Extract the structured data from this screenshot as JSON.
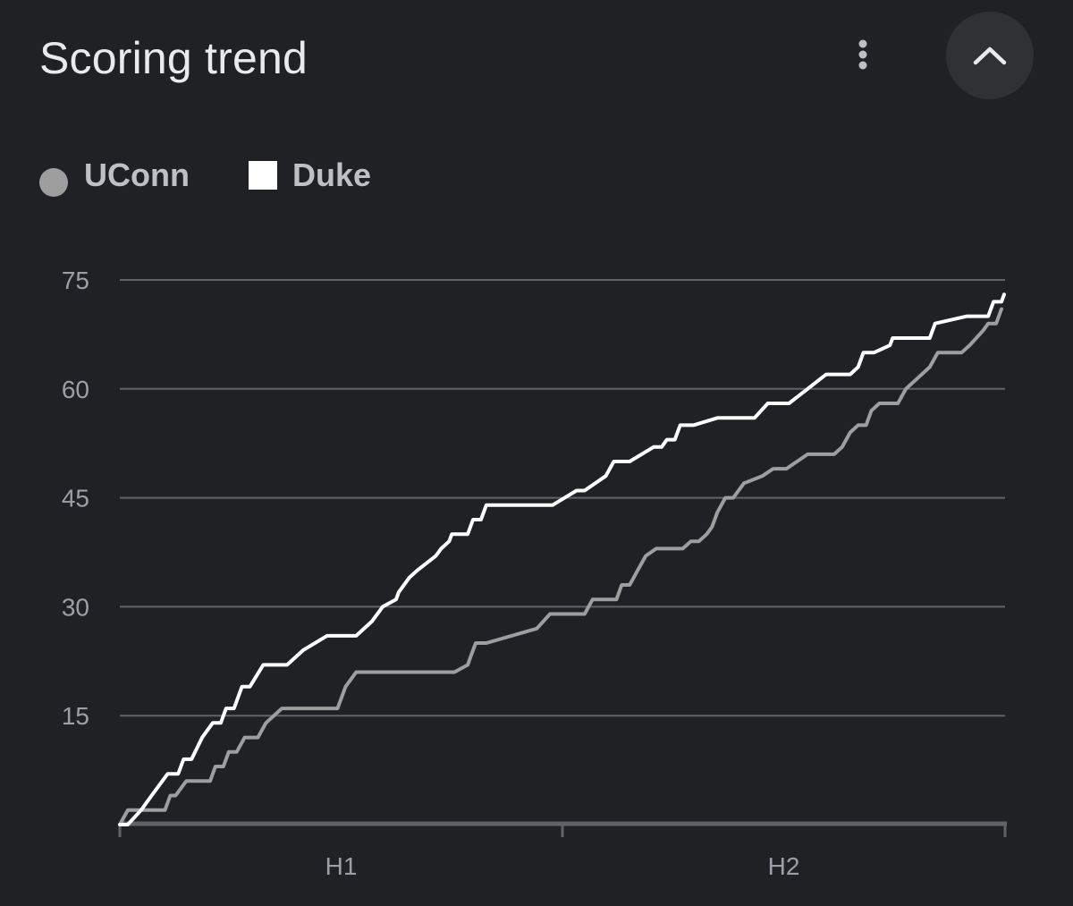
{
  "header": {
    "title": "Scoring trend",
    "menu_icon": "more-vert-icon",
    "collapse_icon": "chevron-up-icon"
  },
  "colors": {
    "background": "#202124",
    "UConn": "#9e9e9e",
    "Duke": "#ffffff",
    "grid": "#5f6368",
    "axis": "#5f6368"
  },
  "chart_data": {
    "type": "line",
    "ylim": [
      0,
      75
    ],
    "y_ticks": [
      "75",
      "60",
      "45",
      "30",
      "15"
    ],
    "x_labels": [
      "H1",
      "H2"
    ],
    "grid": true,
    "legend_position": "top-left",
    "series": [
      {
        "name": "UConn",
        "marker": "circle",
        "points": [
          [
            0.0,
            0
          ],
          [
            0.9,
            2
          ],
          [
            5.1,
            2
          ],
          [
            5.7,
            4
          ],
          [
            6.3,
            4
          ],
          [
            7.5,
            6
          ],
          [
            10.2,
            6
          ],
          [
            10.8,
            8
          ],
          [
            11.7,
            8
          ],
          [
            12.3,
            10
          ],
          [
            13.2,
            10
          ],
          [
            14.1,
            12
          ],
          [
            15.6,
            12
          ],
          [
            16.5,
            14
          ],
          [
            18.3,
            16
          ],
          [
            24.6,
            16
          ],
          [
            25.5,
            19
          ],
          [
            26.7,
            21
          ],
          [
            37.8,
            21
          ],
          [
            39.3,
            22
          ],
          [
            39.6,
            23
          ],
          [
            40.2,
            25
          ],
          [
            41.4,
            25
          ],
          [
            47.1,
            27
          ],
          [
            48.6,
            29
          ],
          [
            52.5,
            29
          ],
          [
            53.4,
            31
          ],
          [
            56.1,
            31
          ],
          [
            56.7,
            33
          ],
          [
            57.6,
            33
          ],
          [
            58.5,
            35
          ],
          [
            59.4,
            37
          ],
          [
            60.6,
            38
          ],
          [
            63.6,
            38
          ],
          [
            64.5,
            39
          ],
          [
            65.4,
            39
          ],
          [
            66.3,
            40
          ],
          [
            66.9,
            41
          ],
          [
            67.5,
            43
          ],
          [
            68.4,
            45
          ],
          [
            69.3,
            45
          ],
          [
            70.5,
            47
          ],
          [
            72.6,
            48
          ],
          [
            73.8,
            49
          ],
          [
            75.3,
            49
          ],
          [
            76.5,
            50
          ],
          [
            77.7,
            51
          ],
          [
            80.7,
            51
          ],
          [
            81.6,
            52
          ],
          [
            82.5,
            54
          ],
          [
            83.4,
            55
          ],
          [
            84.3,
            55
          ],
          [
            84.9,
            57
          ],
          [
            85.8,
            58
          ],
          [
            87.9,
            58
          ],
          [
            88.8,
            60
          ],
          [
            89.7,
            61
          ],
          [
            91.5,
            63
          ],
          [
            92.4,
            65
          ],
          [
            95.1,
            65
          ],
          [
            96.0,
            66
          ],
          [
            97.5,
            68
          ],
          [
            98.1,
            69
          ],
          [
            99.0,
            69
          ],
          [
            99.6,
            71
          ]
        ]
      },
      {
        "name": "Duke",
        "marker": "square",
        "points": [
          [
            0.0,
            0
          ],
          [
            0.9,
            0
          ],
          [
            2.4,
            2
          ],
          [
            3.6,
            4
          ],
          [
            5.4,
            7
          ],
          [
            6.6,
            7
          ],
          [
            7.2,
            9
          ],
          [
            8.1,
            9
          ],
          [
            9.3,
            12
          ],
          [
            10.5,
            14
          ],
          [
            11.4,
            14
          ],
          [
            12.0,
            16
          ],
          [
            12.9,
            16
          ],
          [
            13.8,
            19
          ],
          [
            14.7,
            19
          ],
          [
            16.2,
            22
          ],
          [
            18.9,
            22
          ],
          [
            20.7,
            24
          ],
          [
            23.4,
            26
          ],
          [
            26.7,
            26
          ],
          [
            28.5,
            28
          ],
          [
            29.7,
            30
          ],
          [
            31.2,
            31
          ],
          [
            31.5,
            32
          ],
          [
            32.7,
            34
          ],
          [
            33.6,
            35
          ],
          [
            35.7,
            37
          ],
          [
            36.3,
            38
          ],
          [
            37.2,
            39
          ],
          [
            37.5,
            40
          ],
          [
            39.3,
            40
          ],
          [
            39.9,
            42
          ],
          [
            40.8,
            42
          ],
          [
            41.4,
            44
          ],
          [
            48.9,
            44
          ],
          [
            51.6,
            46
          ],
          [
            52.5,
            46
          ],
          [
            54.9,
            48
          ],
          [
            55.8,
            50
          ],
          [
            57.6,
            50
          ],
          [
            60.3,
            52
          ],
          [
            61.2,
            52
          ],
          [
            61.8,
            53
          ],
          [
            62.7,
            53
          ],
          [
            63.3,
            55
          ],
          [
            64.8,
            55
          ],
          [
            67.5,
            56
          ],
          [
            71.7,
            56
          ],
          [
            73.2,
            58
          ],
          [
            75.6,
            58
          ],
          [
            77.7,
            60
          ],
          [
            79.8,
            62
          ],
          [
            82.5,
            62
          ],
          [
            83.4,
            63
          ],
          [
            84.0,
            65
          ],
          [
            85.2,
            65
          ],
          [
            87.0,
            66
          ],
          [
            87.3,
            67
          ],
          [
            91.5,
            67
          ],
          [
            92.1,
            69
          ],
          [
            95.7,
            70
          ],
          [
            98.1,
            70
          ],
          [
            98.7,
            72
          ],
          [
            99.6,
            72
          ],
          [
            99.9,
            73
          ]
        ]
      }
    ]
  }
}
